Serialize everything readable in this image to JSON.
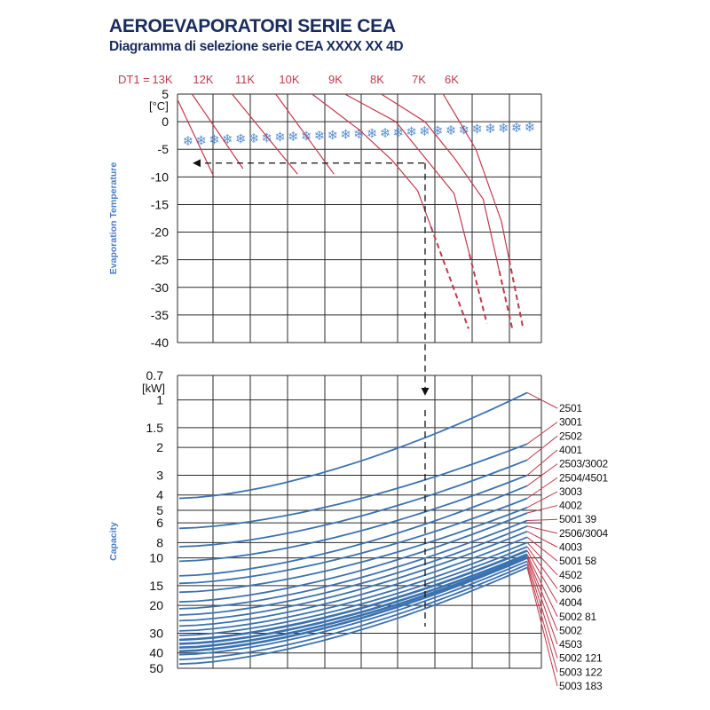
{
  "title": "AEROEVAPORATORI SERIE CEA",
  "subtitle": "Diagramma di selezione serie CEA XXXX XX 4D",
  "colors": {
    "title": "#1a2c5c",
    "dt_lines": "#c0394b",
    "capacity_lines": "#3a72b0",
    "axis_label": "#4a7cc0",
    "snow_icons": "#5a8fd6",
    "grid": "#2a2a2a",
    "selection_path": "#111111"
  },
  "chart_data": [
    {
      "type": "line",
      "name": "evaporation",
      "ylabel": "Evaporation Temperature",
      "yunit": "[°C]",
      "ylim": [
        -40,
        5
      ],
      "yticks": [
        "5",
        "0",
        "-5",
        "-10",
        "-15",
        "-20",
        "-25",
        "-30",
        "-35",
        "-40"
      ],
      "dt_prefix": "DT1 =",
      "dt_labels": [
        "13K",
        "12K",
        "11K",
        "10K",
        "9K",
        "8K",
        "7K",
        "6K"
      ],
      "series": [
        {
          "name": "13K",
          "x": [
            0.0,
            0.1
          ],
          "y": [
            4.0,
            -10.0
          ],
          "dashed_from": null
        },
        {
          "name": "12K",
          "x": [
            0.04,
            0.18
          ],
          "y": [
            5.0,
            -8.5
          ],
          "dashed_from": null
        },
        {
          "name": "11K",
          "x": [
            0.15,
            0.33
          ],
          "y": [
            5.0,
            -9.5
          ],
          "dashed_from": null
        },
        {
          "name": "10K",
          "x": [
            0.27,
            0.43
          ],
          "y": [
            5.0,
            -9.5
          ],
          "dashed_from": null
        },
        {
          "name": "9K",
          "x": [
            0.37,
            0.5,
            0.59,
            0.66,
            0.8
          ],
          "y": [
            5.0,
            -1.5,
            -7.0,
            -12.5,
            -37.5
          ],
          "dashed_from": -19.0
        },
        {
          "name": "8K",
          "x": [
            0.46,
            0.6,
            0.68,
            0.76,
            0.85
          ],
          "y": [
            5.0,
            0.0,
            -6.5,
            -13.0,
            -36.5
          ],
          "dashed_from": -24.0
        },
        {
          "name": "7K",
          "x": [
            0.56,
            0.68,
            0.76,
            0.84,
            0.92
          ],
          "y": [
            5.0,
            0.0,
            -6.5,
            -14.0,
            -37.5
          ],
          "dashed_from": -27.0
        },
        {
          "name": "6K",
          "x": [
            0.73,
            0.82,
            0.89,
            0.95
          ],
          "y": [
            5.0,
            -5.0,
            -18.0,
            -37.5
          ],
          "dashed_from": -25.0
        }
      ],
      "snow_band": {
        "y_start": -3.5,
        "y_end": -1.0,
        "count": 27
      },
      "selection_point": {
        "temperature": -7.5
      }
    },
    {
      "type": "line",
      "name": "capacity",
      "ylabel": "Capacity",
      "yunit": "[kW]",
      "ylog": true,
      "ylim": [
        0.7,
        50
      ],
      "yticks": [
        "0.7",
        "1",
        "1.5",
        "2",
        "3",
        "4",
        "5",
        "6",
        "8",
        "10",
        "15",
        "20",
        "30",
        "40",
        "50"
      ],
      "ytick_values": [
        0.7,
        1,
        1.5,
        2,
        3,
        4,
        5,
        6,
        8,
        10,
        15,
        20,
        30,
        40,
        50
      ],
      "models": [
        {
          "label": "2501",
          "left": 4.2,
          "right": 0.9
        },
        {
          "label": "3001",
          "left": 6.5,
          "right": 1.9
        },
        {
          "label": "2502",
          "left": 8.5,
          "right": 2.4
        },
        {
          "label": "4001",
          "left": 10.5,
          "right": 3.0
        },
        {
          "label": "2503/3002",
          "left": 13.0,
          "right": 3.5
        },
        {
          "label": "2504/4501",
          "left": 14.5,
          "right": 4.2
        },
        {
          "label": "3003",
          "left": 16.5,
          "right": 4.8
        },
        {
          "label": "4002",
          "left": 19.0,
          "right": 5.2
        },
        {
          "label": "5001 39",
          "left": 21.0,
          "right": 5.8
        },
        {
          "label": "2506/3004",
          "left": 23.0,
          "right": 6.3
        },
        {
          "label": "4003",
          "left": 25.0,
          "right": 6.8
        },
        {
          "label": "5001 58",
          "left": 27.0,
          "right": 7.4
        },
        {
          "label": "4502",
          "left": 29.0,
          "right": 8.0
        },
        {
          "label": "3006",
          "left": 31.0,
          "right": 8.5
        },
        {
          "label": "4004",
          "left": 33.0,
          "right": 9.0
        },
        {
          "label": "5002 81",
          "left": 35.0,
          "right": 9.5
        },
        {
          "label": "5002",
          "left": 37.0,
          "right": 9.8
        },
        {
          "label": "4503",
          "left": 39.0,
          "right": 10.0
        },
        {
          "label": "5002 121",
          "left": 41.0,
          "right": 10.5
        },
        {
          "label": "5003 122",
          "left": 44.0,
          "right": 11.0
        },
        {
          "label": "5003 183",
          "left": 47.0,
          "right": 11.5
        }
      ]
    }
  ]
}
